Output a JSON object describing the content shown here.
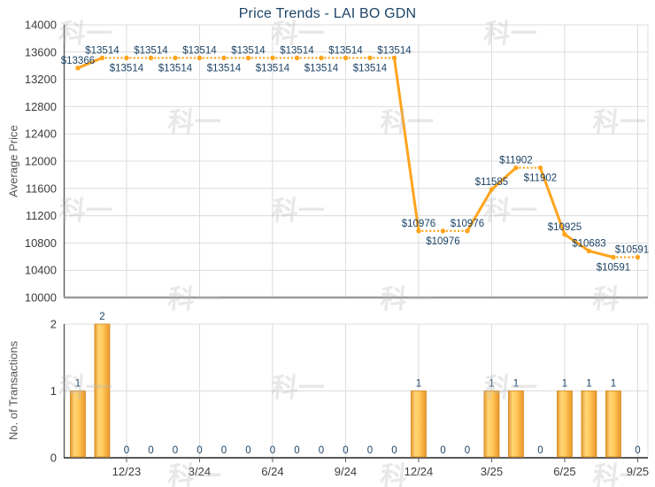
{
  "title": "Price Trends - LAI BO GDN",
  "watermark": {
    "text": "科一"
  },
  "colors": {
    "line": "#FFA41C",
    "data_label": "#1D4466",
    "title_text": "#1D4466",
    "axis_text": "#3C3C3C",
    "axis_title_text": "#555555",
    "grid": "#DCDCDC",
    "axis_line": "#5A5A5A",
    "top_chart_baseline": "#9B9B9B",
    "bar_border": "#D4881F",
    "bar_edge": "#E6992E",
    "bar_light": "#FFD678",
    "bar_mid": "#FFC95B",
    "watermark_color": "rgba(185,185,185,0.33)"
  },
  "chart_data": [
    {
      "type": "line",
      "title": "Price Trends - LAI BO GDN",
      "ylabel": "Average Price",
      "ylim": [
        10000,
        14000
      ],
      "yticks": [
        14000,
        13600,
        13200,
        12800,
        12400,
        12000,
        11600,
        11200,
        10800,
        10400,
        10000
      ],
      "categories": [
        "10/23",
        "11/23",
        "12/23",
        "1/24",
        "2/24",
        "3/24",
        "4/24",
        "5/24",
        "6/24",
        "7/24",
        "8/24",
        "9/24",
        "10/24",
        "11/24",
        "12/24",
        "1/25",
        "2/25",
        "3/25",
        "4/25",
        "5/25",
        "6/25",
        "7/25",
        "8/25",
        "9/25"
      ],
      "values": [
        13366,
        13514,
        13514,
        13514,
        13514,
        13514,
        13514,
        13514,
        13514,
        13514,
        13514,
        13514,
        13514,
        13514,
        10976,
        10976,
        10976,
        11585,
        11902,
        11902,
        10925,
        10683,
        10591,
        10591
      ],
      "point_labels": [
        "$13366",
        "$13514",
        "$13514",
        "$13514",
        "$13514",
        "$13514",
        "$13514",
        "$13514",
        "$13514",
        "$13514",
        "$13514",
        "$13514",
        "$13514",
        "$13514",
        "$10976",
        "$10976",
        "$10976",
        "$11585",
        "$11902",
        "$11902",
        "$10925",
        "$10683",
        "$10591",
        "$10591"
      ],
      "label_positions": [
        "above",
        "above",
        "below",
        "above",
        "below",
        "above",
        "below",
        "above",
        "below",
        "above",
        "below",
        "above",
        "below",
        "above",
        "above",
        "below",
        "above",
        "above",
        "above",
        "below",
        "above",
        "above",
        "below",
        "above"
      ],
      "x_tick_indices": [
        2,
        5,
        8,
        11,
        14,
        17,
        20,
        23
      ],
      "x_tick_labels": [
        "12/23",
        "3/24",
        "6/24",
        "9/24",
        "12/24",
        "3/25",
        "6/25",
        "9/25"
      ],
      "grid": "on",
      "legend": "none"
    },
    {
      "type": "bar",
      "ylabel": "No. of Transactions",
      "ylim": [
        0,
        2
      ],
      "yticks": [
        2,
        1,
        0
      ],
      "categories": [
        "10/23",
        "11/23",
        "12/23",
        "1/24",
        "2/24",
        "3/24",
        "4/24",
        "5/24",
        "6/24",
        "7/24",
        "8/24",
        "9/24",
        "10/24",
        "11/24",
        "12/24",
        "1/25",
        "2/25",
        "3/25",
        "4/25",
        "5/25",
        "6/25",
        "7/25",
        "8/25",
        "9/25"
      ],
      "values": [
        1,
        2,
        0,
        0,
        0,
        0,
        0,
        0,
        0,
        0,
        0,
        0,
        0,
        0,
        1,
        0,
        0,
        1,
        1,
        0,
        1,
        1,
        1,
        0
      ],
      "x_tick_indices": [
        2,
        5,
        8,
        11,
        14,
        17,
        20,
        23
      ],
      "x_tick_labels": [
        "12/23",
        "3/24",
        "6/24",
        "9/24",
        "12/24",
        "3/25",
        "6/25",
        "9/25"
      ],
      "grid": "on",
      "legend": "none"
    }
  ]
}
